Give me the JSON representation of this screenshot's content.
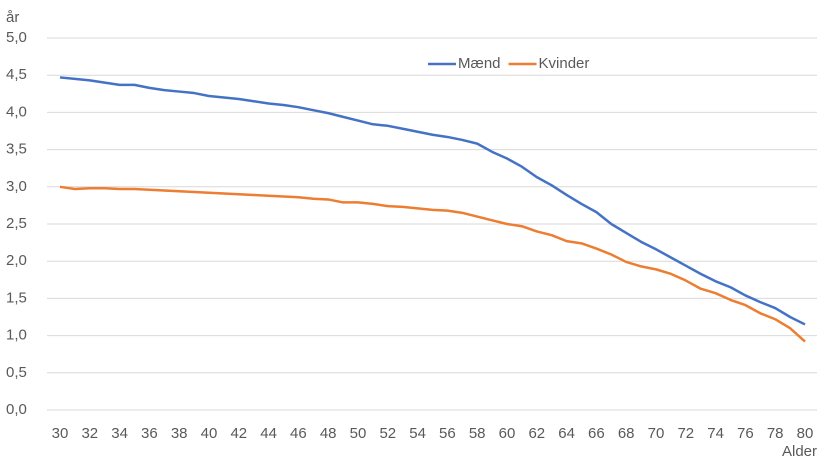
{
  "chart_data": {
    "type": "line",
    "ylabel": "år",
    "xlabel": "Alder",
    "x": [
      30,
      31,
      32,
      33,
      34,
      35,
      36,
      37,
      38,
      39,
      40,
      41,
      42,
      43,
      44,
      45,
      46,
      47,
      48,
      49,
      50,
      51,
      52,
      53,
      54,
      55,
      56,
      57,
      58,
      59,
      60,
      61,
      62,
      63,
      64,
      65,
      66,
      67,
      68,
      69,
      70,
      71,
      72,
      73,
      74,
      75,
      76,
      77,
      78,
      79,
      80
    ],
    "series": [
      {
        "name": "Mænd",
        "color": "#4472c4",
        "values": [
          4.47,
          4.45,
          4.43,
          4.4,
          4.37,
          4.37,
          4.33,
          4.3,
          4.28,
          4.26,
          4.22,
          4.2,
          4.18,
          4.15,
          4.12,
          4.1,
          4.07,
          4.03,
          3.99,
          3.94,
          3.89,
          3.84,
          3.82,
          3.78,
          3.74,
          3.7,
          3.67,
          3.63,
          3.58,
          3.47,
          3.38,
          3.27,
          3.13,
          3.02,
          2.89,
          2.77,
          2.66,
          2.5,
          2.38,
          2.26,
          2.16,
          2.05,
          1.94,
          1.83,
          1.73,
          1.65,
          1.54,
          1.45,
          1.37,
          1.25,
          1.15
        ]
      },
      {
        "name": "Kvinder",
        "color": "#ed7d31",
        "values": [
          3.0,
          2.97,
          2.98,
          2.98,
          2.97,
          2.97,
          2.96,
          2.95,
          2.94,
          2.93,
          2.92,
          2.91,
          2.9,
          2.89,
          2.88,
          2.87,
          2.86,
          2.84,
          2.83,
          2.79,
          2.79,
          2.77,
          2.74,
          2.73,
          2.71,
          2.69,
          2.68,
          2.65,
          2.6,
          2.55,
          2.5,
          2.47,
          2.4,
          2.35,
          2.27,
          2.24,
          2.17,
          2.09,
          1.99,
          1.93,
          1.89,
          1.83,
          1.74,
          1.63,
          1.57,
          1.48,
          1.41,
          1.3,
          1.22,
          1.1,
          0.92
        ]
      }
    ],
    "xlim": [
      30,
      80
    ],
    "xticks": [
      30,
      32,
      34,
      36,
      38,
      40,
      42,
      44,
      46,
      48,
      50,
      52,
      54,
      56,
      58,
      60,
      62,
      64,
      66,
      68,
      70,
      72,
      74,
      76,
      78,
      80
    ],
    "ylim": [
      0,
      5
    ],
    "yticks": [
      {
        "value": 0,
        "label": "0,0"
      },
      {
        "value": 0.5,
        "label": "0,5"
      },
      {
        "value": 1,
        "label": "1,0"
      },
      {
        "value": 1.5,
        "label": "1,5"
      },
      {
        "value": 2,
        "label": "2,0"
      },
      {
        "value": 2.5,
        "label": "2,5"
      },
      {
        "value": 3,
        "label": "3,0"
      },
      {
        "value": 3.5,
        "label": "3,5"
      },
      {
        "value": 4,
        "label": "4,0"
      },
      {
        "value": 4.5,
        "label": "4,5"
      },
      {
        "value": 5,
        "label": "5,0"
      }
    ],
    "grid": true,
    "legend": "top"
  }
}
